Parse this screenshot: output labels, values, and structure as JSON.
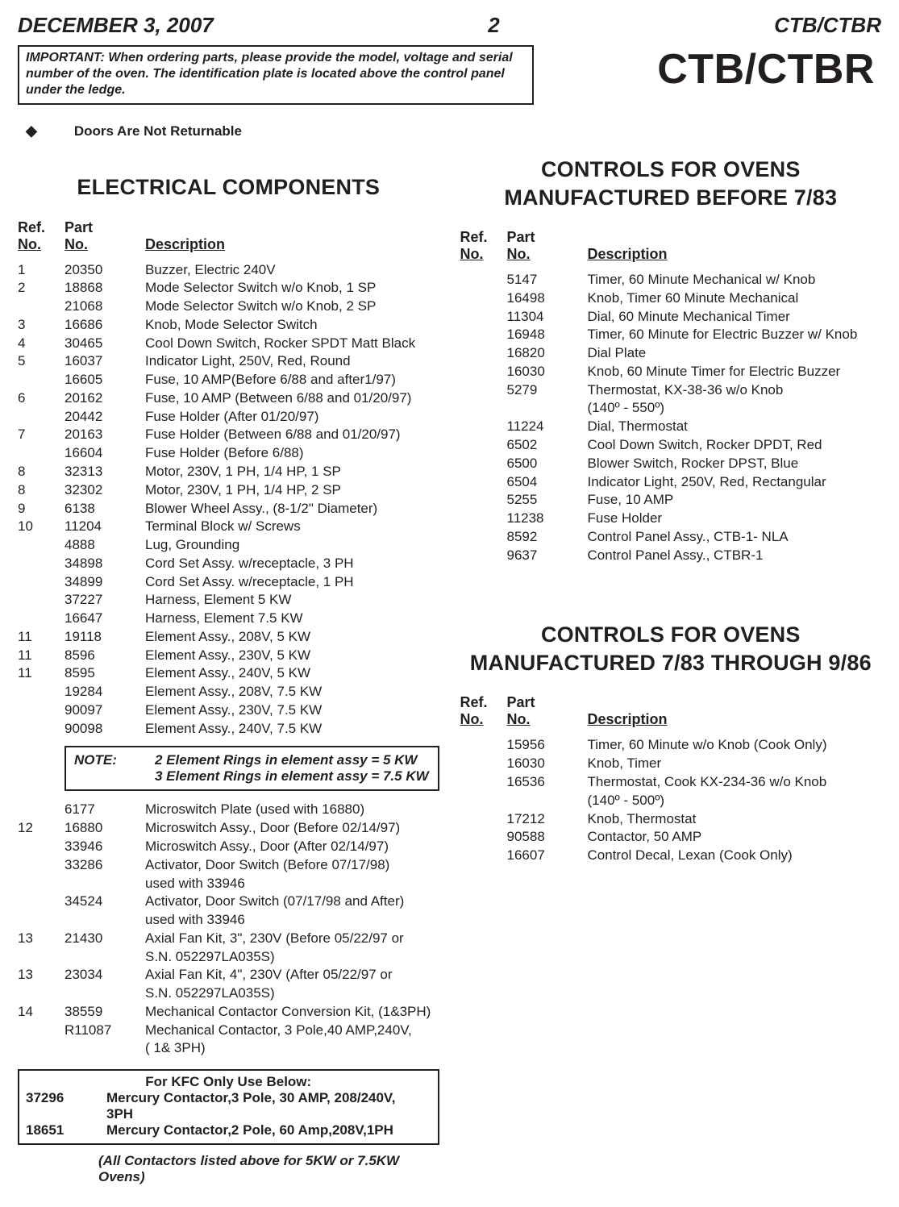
{
  "header": {
    "date": "DECEMBER 3, 2007",
    "page": "2",
    "model": "CTB/CTBR"
  },
  "big_title": "CTB/CTBR",
  "important": "IMPORTANT:  When ordering parts, please provide the model, voltage and serial number of the oven.  The identification plate is located  above the control panel under the ledge.",
  "returnable": {
    "symbol": "◆",
    "text": "Doors Are Not Returnable"
  },
  "col_headers": {
    "ref": "Ref.",
    "no": "No.",
    "part": "Part",
    "partno": "No.",
    "desc": "Description"
  },
  "left": {
    "title": "ELECTRICAL  COMPONENTS",
    "rows1": [
      {
        "r": "1",
        "p": "20350",
        "d": "Buzzer, Electric 240V"
      },
      {
        "r": "2",
        "p": "18868",
        "d": "Mode Selector Switch w/o Knob, 1 SP"
      },
      {
        "r": "",
        "p": "21068",
        "d": "Mode Selector Switch w/o Knob, 2 SP"
      },
      {
        "r": "3",
        "p": "16686",
        "d": "Knob, Mode Selector Switch"
      },
      {
        "r": "4",
        "p": "30465",
        "d": "Cool Down Switch, Rocker SPDT Matt Black"
      },
      {
        "r": "5",
        "p": "16037",
        "d": "Indicator Light, 250V, Red, Round"
      },
      {
        "r": "",
        "p": "16605",
        "d": "Fuse, 10 AMP(Before 6/88 and after1/97)"
      },
      {
        "r": "6",
        "p": "20162",
        "d": "Fuse, 10 AMP (Between 6/88 and 01/20/97)"
      },
      {
        "r": "",
        "p": "20442",
        "d": "Fuse Holder (After 01/20/97)"
      },
      {
        "r": "7",
        "p": "20163",
        "d": "Fuse Holder (Between 6/88 and 01/20/97)"
      },
      {
        "r": "",
        "p": "16604",
        "d": "Fuse Holder (Before 6/88)"
      },
      {
        "r": "8",
        "p": "32313",
        "d": "Motor, 230V, 1 PH, 1/4 HP, 1 SP"
      },
      {
        "r": "8",
        "p": "32302",
        "d": "Motor, 230V, 1 PH, 1/4 HP, 2 SP"
      },
      {
        "r": "9",
        "p": "6138",
        "d": "Blower Wheel Assy., (8-1/2\" Diameter)"
      },
      {
        "r": "10",
        "p": "11204",
        "d": "Terminal Block w/ Screws"
      },
      {
        "r": "",
        "p": "4888",
        "d": "Lug,  Grounding"
      },
      {
        "r": "",
        "p": "34898",
        "d": "Cord Set Assy. w/receptacle, 3 PH"
      },
      {
        "r": "",
        "p": "34899",
        "d": "Cord Set Assy. w/receptacle, 1 PH"
      },
      {
        "r": "",
        "p": "37227",
        "d": "Harness, Element  5 KW"
      },
      {
        "r": "",
        "p": "16647",
        "d": "Harness, Element  7.5 KW"
      },
      {
        "r": "11",
        "p": "19118",
        "d": "Element Assy., 208V, 5 KW"
      },
      {
        "r": "11",
        "p": "8596",
        "d": "Element Assy., 230V, 5 KW"
      },
      {
        "r": "11",
        "p": "8595",
        "d": "Element Assy., 240V, 5 KW"
      },
      {
        "r": "",
        "p": "19284",
        "d": "Element Assy., 208V, 7.5 KW"
      },
      {
        "r": "",
        "p": "90097",
        "d": "Element Assy., 230V, 7.5 KW"
      },
      {
        "r": "",
        "p": "90098",
        "d": "Element Assy., 240V, 7.5 KW"
      }
    ],
    "note": {
      "label": "NOTE:",
      "l1": "2 Element Rings in element assy = 5 KW",
      "l2": "3 Element Rings in element assy = 7.5 KW"
    },
    "rows2": [
      {
        "r": "",
        "p": "6177",
        "d": "Microswitch Plate (used with 16880)"
      },
      {
        "r": "12",
        "p": "16880",
        "d": "Microswitch Assy., Door (Before 02/14/97)"
      },
      {
        "r": "",
        "p": "33946",
        "d": "Microswitch Assy., Door (After 02/14/97)"
      },
      {
        "r": "",
        "p": "33286",
        "d": "Activator, Door Switch (Before 07/17/98)"
      },
      {
        "r": "",
        "p": "",
        "d": "used with 33946"
      },
      {
        "r": "",
        "p": "34524",
        "d": "Activator, Door Switch (07/17/98 and After)"
      },
      {
        "r": "",
        "p": "",
        "d": "used with 33946"
      },
      {
        "r": "13",
        "p": "21430",
        "d": "Axial Fan Kit, 3\", 230V (Before 05/22/97 or"
      },
      {
        "r": "",
        "p": "",
        "d": "S.N. 052297LA035S)"
      },
      {
        "r": "13",
        "p": "23034",
        "d": "Axial Fan Kit, 4\", 230V (After 05/22/97 or"
      },
      {
        "r": "",
        "p": "",
        "d": "S.N. 052297LA035S)"
      },
      {
        "r": "14",
        "p": "38559",
        "d": "Mechanical Contactor Conversion Kit, (1&3PH)"
      },
      {
        "r": "",
        "p": "R11087",
        "d": "Mechanical Contactor, 3 Pole,40 AMP,240V,"
      },
      {
        "r": "",
        "p": "",
        "d": " ( 1& 3PH)"
      }
    ],
    "kfc": {
      "title": "For KFC Only Use Below:",
      "rows": [
        {
          "p": "37296",
          "d": "Mercury Contactor,3 Pole, 30 AMP, 208/240V,"
        },
        {
          "p": "",
          "d": "3PH"
        },
        {
          "p": "18651",
          "d": "Mercury Contactor,2 Pole, 60 Amp,208V,1PH"
        }
      ]
    },
    "footnote": "(All Contactors listed above for 5KW or 7.5KW Ovens)"
  },
  "right": {
    "sec1": {
      "title": "CONTROLS FOR OVENS MANUFACTURED BEFORE 7/83",
      "rows": [
        {
          "r": "",
          "p": "5147",
          "d": "Timer, 60 Minute Mechanical w/ Knob"
        },
        {
          "r": "",
          "p": "16498",
          "d": "Knob, Timer 60 Minute Mechanical"
        },
        {
          "r": "",
          "p": "11304",
          "d": "Dial, 60 Minute Mechanical Timer"
        },
        {
          "r": "",
          "p": "16948",
          "d": "Timer, 60 Minute for Electric Buzzer w/ Knob"
        },
        {
          "r": "",
          "p": "16820",
          "d": "Dial Plate"
        },
        {
          "r": "",
          "p": "16030",
          "d": "Knob, 60 Minute Timer for Electric Buzzer"
        },
        {
          "r": "",
          "p": "5279",
          "d": "Thermostat, KX-38-36 w/o Knob"
        },
        {
          "r": "",
          "p": "",
          "d": "(140º - 550º)"
        },
        {
          "r": "",
          "p": "11224",
          "d": "Dial, Thermostat"
        },
        {
          "r": "",
          "p": "6502",
          "d": "Cool Down Switch, Rocker DPDT, Red"
        },
        {
          "r": "",
          "p": "6500",
          "d": "Blower Switch, Rocker DPST, Blue"
        },
        {
          "r": "",
          "p": "6504",
          "d": "Indicator Light, 250V, Red, Rectangular"
        },
        {
          "r": "",
          "p": "5255",
          "d": "Fuse, 10 AMP"
        },
        {
          "r": "",
          "p": "11238",
          "d": "Fuse Holder"
        },
        {
          "r": "",
          "p": "8592",
          "d": "Control Panel Assy., CTB-1- NLA"
        },
        {
          "r": "",
          "p": "9637",
          "d": "Control Panel Assy., CTBR-1"
        }
      ]
    },
    "sec2": {
      "title": "CONTROLS FOR OVENS MANUFACTURED 7/83 THROUGH 9/86",
      "rows": [
        {
          "r": "",
          "p": "15956",
          "d": "Timer, 60 Minute w/o Knob (Cook Only)"
        },
        {
          "r": "",
          "p": "16030",
          "d": "Knob, Timer"
        },
        {
          "r": "",
          "p": "16536",
          "d": "Thermostat, Cook KX-234-36 w/o Knob"
        },
        {
          "r": "",
          "p": "",
          "d": "(140º - 500º)"
        },
        {
          "r": "",
          "p": "17212",
          "d": "Knob, Thermostat"
        },
        {
          "r": "",
          "p": "90588",
          "d": "Contactor, 50 AMP"
        },
        {
          "r": "",
          "p": "16607",
          "d": "Control Decal, Lexan (Cook Only)"
        }
      ]
    }
  }
}
